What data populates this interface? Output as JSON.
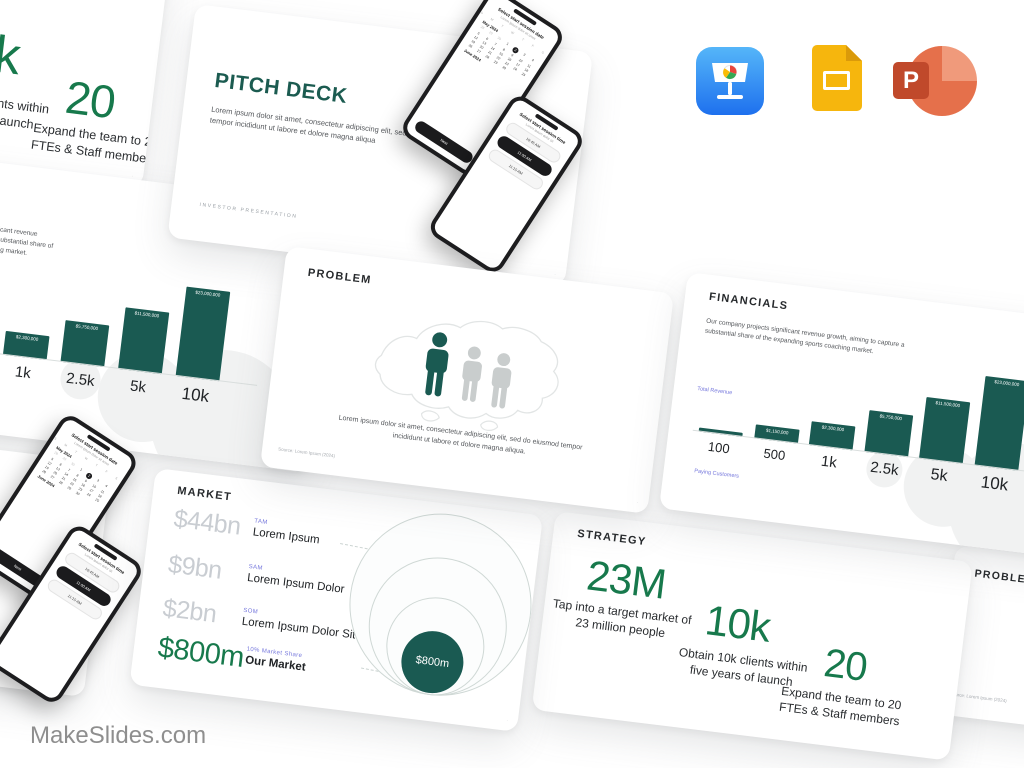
{
  "brand": "MakeSlides.com",
  "platform_icons": {
    "keynote": "Apple Keynote",
    "google_slides": "Google Slides",
    "powerpoint": "Microsoft PowerPoint",
    "powerpoint_letter": "P"
  },
  "cover": {
    "title": "PITCH DECK",
    "body": "Lorem ipsum dolor sit amet, consectetur adipiscing elit, sed do eiusmod tempor incididunt ut labore et dolore magna aliqua",
    "footer": "INVESTOR  PRESENTATION",
    "phone_date": {
      "header": "Select start session date",
      "sub": "Lorem ipsum dolor sit amet",
      "week": [
        "S",
        "M",
        "T",
        "W",
        "T",
        "F",
        "S"
      ],
      "month_current": "May 2024",
      "month_next": "June 2024",
      "next_label": "Next"
    },
    "phone_time": {
      "header": "Select start session time",
      "sub": "Lorem ipsum dolor sit",
      "times": [
        "10:45 AM",
        "11:00 AM",
        "11:15 AM"
      ]
    }
  },
  "problem": {
    "title": "PROBLEM",
    "body": "Lorem ipsum dolor sit amet, consectetur adipiscing elit, sed do eiusmod tempor incididunt ut labore et dolore magna aliqua.",
    "source": "Source: Lorem Ipsum (2024)"
  },
  "financials": {
    "title": "FINANCIALS",
    "body": "Our company projects significant revenue growth, aiming to capture a substantial share of the expanding sports coaching market.",
    "y_axis_label": "Total Revenue",
    "x_axis_label": "Paying Customers",
    "categories": [
      "100",
      "500",
      "1k",
      "2.5k",
      "5k",
      "10k"
    ],
    "bar_labels": [
      "",
      "$1,150,000",
      "$2,300,000",
      "$5,750,000",
      "$11,500,000",
      "$23,000,000"
    ]
  },
  "market": {
    "title": "MARKET",
    "rows": [
      {
        "value": "$44bn",
        "tag": "TAM",
        "name": "Lorem Ipsum"
      },
      {
        "value": "$9bn",
        "tag": "SAM",
        "name": "Lorem Ipsum Dolor"
      },
      {
        "value": "$2bn",
        "tag": "SOM",
        "name": "Lorem Ipsum Dolor Sit"
      },
      {
        "value": "$800m",
        "tag": "10% Market Share",
        "name": "Our Market"
      }
    ],
    "bubble_label": "$800m"
  },
  "strategy": {
    "title": "STRATEGY",
    "stats": [
      {
        "value": "23M",
        "caption_line1": "Tap into a target market of",
        "caption_line2": "23 million people"
      },
      {
        "value": "10k",
        "caption_line1": "Obtain 10k clients within",
        "caption_line2": "five years of launch"
      },
      {
        "value": "20",
        "caption_line1": "Expand the team to 20",
        "caption_line2": "FTEs & Staff members"
      }
    ]
  },
  "chart_data": {
    "type": "bar",
    "title": "FINANCIALS — Total Revenue by Paying Customers",
    "categories": [
      "100",
      "500",
      "1k",
      "2.5k",
      "5k",
      "10k"
    ],
    "values": [
      230000,
      1150000,
      2300000,
      5750000,
      11500000,
      23000000
    ],
    "xlabel": "Paying Customers",
    "ylabel": "Total Revenue",
    "bar_color": "#1A5A52",
    "legend": false,
    "grid": false
  }
}
